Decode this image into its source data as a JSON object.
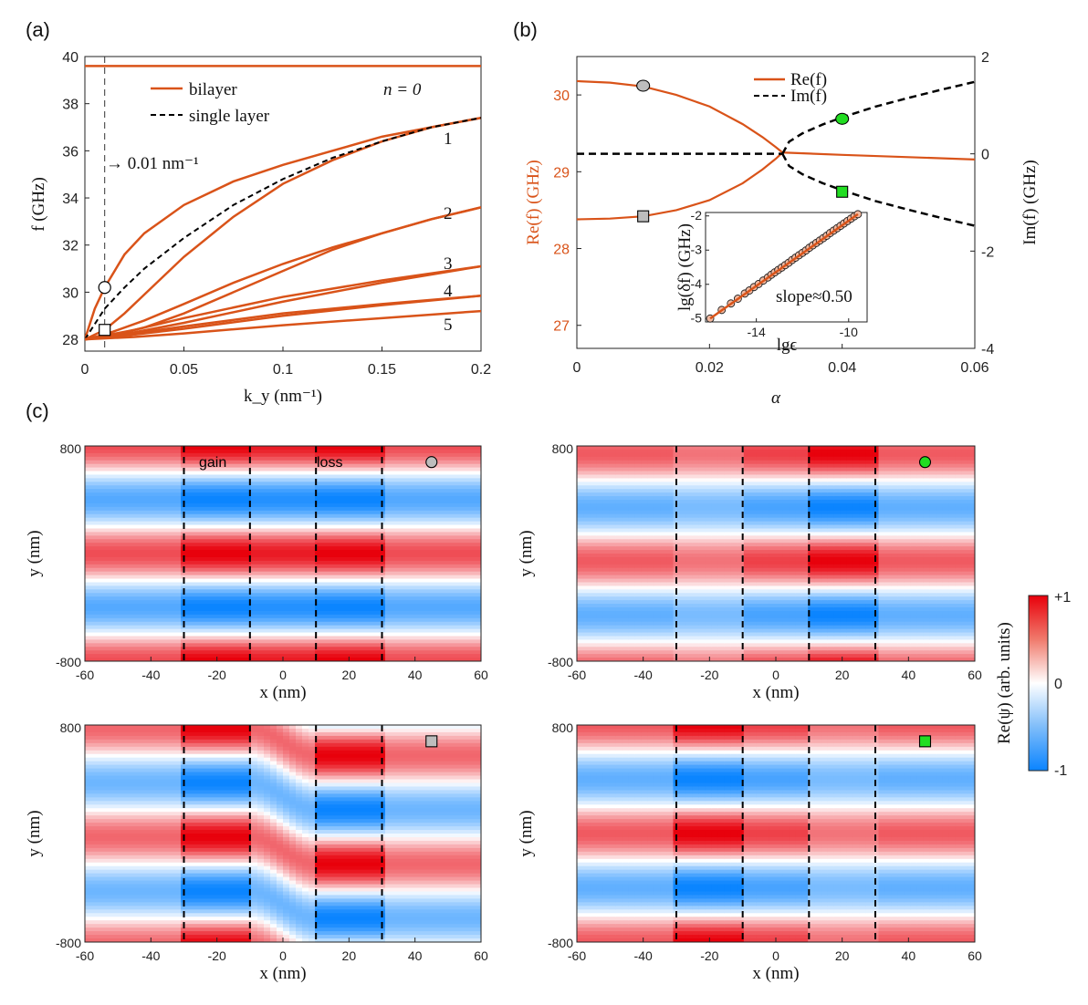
{
  "colors": {
    "bilayer": "#d95319",
    "single": "#000000",
    "gray": "#bdbdbd",
    "green": "#22dd22",
    "red": "#e8000b",
    "blue": "#0a84ff"
  },
  "panel_labels": {
    "a": "(a)",
    "b": "(b)",
    "c": "(c)"
  },
  "chart_data": [
    {
      "id": "a",
      "type": "line",
      "xlabel": "k_y (nm⁻¹)",
      "ylabel": "f (GHz)",
      "xlim": [
        0,
        0.2
      ],
      "ylim": [
        27.5,
        40
      ],
      "xticks": [
        0,
        0.05,
        0.1,
        0.15,
        0.2
      ],
      "xtick_labels": [
        "0",
        "0.05",
        "0.1",
        "0.15",
        "0.2"
      ],
      "yticks": [
        28,
        30,
        32,
        34,
        36,
        38,
        40
      ],
      "ytick_labels": [
        "28",
        "30",
        "32",
        "34",
        "36",
        "38",
        "40"
      ],
      "legend": [
        "bilayer",
        "single layer"
      ],
      "n_label": "n = 0",
      "branch_labels": [
        "1",
        "2",
        "3",
        "4",
        "5"
      ],
      "marker_line_label": "→ 0.01 nm⁻¹",
      "marker_line_x": 0.01,
      "markers": [
        {
          "shape": "circle",
          "x": 0.01,
          "y": 30.2
        },
        {
          "shape": "square",
          "x": 0.01,
          "y": 28.4
        }
      ],
      "series": [
        {
          "name": "bilayer n=0",
          "style": "bilayer",
          "x": [
            0,
            0.2
          ],
          "y": [
            39.6,
            39.6
          ]
        },
        {
          "name": "bilayer n=1 upper",
          "style": "bilayer",
          "x": [
            0,
            0.005,
            0.01,
            0.02,
            0.03,
            0.05,
            0.075,
            0.1,
            0.125,
            0.15,
            0.175,
            0.2
          ],
          "y": [
            28.0,
            29.3,
            30.2,
            31.6,
            32.5,
            33.7,
            34.7,
            35.4,
            36.0,
            36.6,
            37.0,
            37.4
          ]
        },
        {
          "name": "bilayer n=1 lower",
          "style": "bilayer",
          "x": [
            0,
            0.01,
            0.02,
            0.03,
            0.05,
            0.075,
            0.1,
            0.125,
            0.15,
            0.175,
            0.2
          ],
          "y": [
            28.0,
            28.4,
            29.1,
            29.9,
            31.5,
            33.2,
            34.6,
            35.6,
            36.4,
            37.0,
            37.4
          ]
        },
        {
          "name": "single layer n=1",
          "style": "single",
          "x": [
            0,
            0.01,
            0.02,
            0.03,
            0.05,
            0.075,
            0.1,
            0.125,
            0.15,
            0.175,
            0.2
          ],
          "y": [
            28.0,
            29.3,
            30.2,
            31.0,
            32.3,
            33.7,
            34.8,
            35.7,
            36.4,
            37.0,
            37.4
          ]
        },
        {
          "name": "bilayer n=2 upper",
          "style": "bilayer",
          "x": [
            0,
            0.01,
            0.03,
            0.05,
            0.075,
            0.1,
            0.125,
            0.15,
            0.175,
            0.2
          ],
          "y": [
            28.0,
            28.2,
            28.8,
            29.5,
            30.4,
            31.2,
            31.9,
            32.5,
            33.1,
            33.6
          ]
        },
        {
          "name": "bilayer n=2 lower",
          "style": "bilayer",
          "x": [
            0,
            0.01,
            0.03,
            0.05,
            0.075,
            0.1,
            0.125,
            0.15,
            0.175,
            0.2
          ],
          "y": [
            28.0,
            28.1,
            28.5,
            29.1,
            30.0,
            30.9,
            31.8,
            32.5,
            33.1,
            33.6
          ]
        },
        {
          "name": "bilayer n=3 upper",
          "style": "bilayer",
          "x": [
            0,
            0.025,
            0.05,
            0.1,
            0.15,
            0.2
          ],
          "y": [
            28.0,
            28.4,
            28.9,
            29.8,
            30.5,
            31.1
          ]
        },
        {
          "name": "bilayer n=3 lower",
          "style": "bilayer",
          "x": [
            0,
            0.025,
            0.05,
            0.1,
            0.15,
            0.2
          ],
          "y": [
            28.0,
            28.3,
            28.7,
            29.6,
            30.4,
            31.1
          ]
        },
        {
          "name": "bilayer n=4 upper",
          "style": "bilayer",
          "x": [
            0,
            0.025,
            0.05,
            0.1,
            0.15,
            0.2
          ],
          "y": [
            28.0,
            28.25,
            28.55,
            29.1,
            29.5,
            29.85
          ]
        },
        {
          "name": "bilayer n=4 lower",
          "style": "bilayer",
          "x": [
            0,
            0.025,
            0.05,
            0.1,
            0.15,
            0.2
          ],
          "y": [
            28.0,
            28.2,
            28.45,
            29.0,
            29.45,
            29.85
          ]
        },
        {
          "name": "bilayer n=5",
          "style": "bilayer",
          "x": [
            0,
            0.025,
            0.05,
            0.1,
            0.15,
            0.2
          ],
          "y": [
            28.0,
            28.1,
            28.25,
            28.6,
            28.9,
            29.2
          ]
        }
      ]
    },
    {
      "id": "b",
      "type": "line",
      "xlabel": "α",
      "ylabel_left": "Re(f) (GHz)",
      "ylabel_right": "Im(f) (GHz)",
      "xlim": [
        0,
        0.06
      ],
      "ylim_left": [
        26.7,
        30.5
      ],
      "ylim_right": [
        -4,
        2
      ],
      "xticks": [
        0,
        0.02,
        0.04,
        0.06
      ],
      "xtick_labels": [
        "0",
        "0.02",
        "0.04",
        "0.06"
      ],
      "yticks_left": [
        27,
        28,
        29,
        30
      ],
      "ytick_labels_left": [
        "27",
        "28",
        "29",
        "30"
      ],
      "yticks_right": [
        -4,
        -2,
        0,
        2
      ],
      "ytick_labels_right": [
        "-4",
        "-2",
        "0",
        "2"
      ],
      "legend": [
        "Re(f)",
        "Im(f)"
      ],
      "exceptional_point_alpha": 0.031,
      "markers": [
        {
          "shape": "circle",
          "color": "gray",
          "x": 0.01,
          "y": 30.12,
          "axis": "left"
        },
        {
          "shape": "square",
          "color": "gray",
          "x": 0.01,
          "y": 28.42,
          "axis": "left"
        },
        {
          "shape": "circle",
          "color": "green",
          "x": 0.04,
          "y": 0.72,
          "axis": "right"
        },
        {
          "shape": "square",
          "color": "green",
          "x": 0.04,
          "y": -0.78,
          "axis": "right"
        }
      ],
      "series": [
        {
          "name": "Re(f) upper",
          "axis": "left",
          "style": "solid",
          "x": [
            0,
            0.005,
            0.01,
            0.015,
            0.02,
            0.025,
            0.028,
            0.03,
            0.031
          ],
          "y": [
            30.18,
            30.16,
            30.11,
            30.0,
            29.85,
            29.62,
            29.45,
            29.32,
            29.25
          ]
        },
        {
          "name": "Re(f) lower",
          "axis": "left",
          "style": "solid",
          "x": [
            0,
            0.005,
            0.01,
            0.015,
            0.02,
            0.025,
            0.028,
            0.03,
            0.031
          ],
          "y": [
            28.38,
            28.39,
            28.42,
            28.5,
            28.63,
            28.85,
            29.03,
            29.17,
            29.25
          ]
        },
        {
          "name": "Re(f) after EP",
          "axis": "left",
          "style": "solid",
          "x": [
            0.031,
            0.04,
            0.05,
            0.06
          ],
          "y": [
            29.25,
            29.22,
            29.19,
            29.16
          ]
        },
        {
          "name": "Im(f) before EP",
          "axis": "right",
          "style": "dashed",
          "x": [
            0,
            0.031
          ],
          "y": [
            0,
            0
          ]
        },
        {
          "name": "Im(f) upper",
          "axis": "right",
          "style": "dashed",
          "x": [
            0.031,
            0.032,
            0.034,
            0.037,
            0.04,
            0.045,
            0.05,
            0.055,
            0.06
          ],
          "y": [
            0,
            0.25,
            0.42,
            0.6,
            0.75,
            0.97,
            1.15,
            1.32,
            1.48
          ]
        },
        {
          "name": "Im(f) lower",
          "axis": "right",
          "style": "dashed",
          "x": [
            0.031,
            0.032,
            0.034,
            0.037,
            0.04,
            0.045,
            0.05,
            0.055,
            0.06
          ],
          "y": [
            0,
            -0.25,
            -0.42,
            -0.6,
            -0.75,
            -0.97,
            -1.15,
            -1.32,
            -1.48
          ]
        }
      ],
      "inset": {
        "type": "scatter",
        "xlabel": "lgϵ",
        "ylabel": "lg(δf) (GHz)",
        "xlim": [
          -16.2,
          -9.2
        ],
        "ylim": [
          -5.1,
          -1.9
        ],
        "xticks": [
          -14,
          -10
        ],
        "xtick_labels": [
          "-14",
          "-10"
        ],
        "yticks": [
          -5,
          -4,
          -3,
          -2
        ],
        "ytick_labels": [
          "-5",
          "-4",
          "-3",
          "-2"
        ],
        "annotation": "slope≈0.50",
        "fit": {
          "x": [
            -16.0,
            -9.6
          ],
          "y": [
            -5.0,
            -1.95
          ]
        },
        "points_x": [
          -16.0,
          -15.5,
          -15.1,
          -14.8,
          -14.5,
          -14.3,
          -14.1,
          -13.9,
          -13.7,
          -13.5,
          -13.35,
          -13.2,
          -13.05,
          -12.9,
          -12.75,
          -12.6,
          -12.45,
          -12.3,
          -12.15,
          -12.0,
          -11.85,
          -11.7,
          -11.55,
          -11.4,
          -11.25,
          -11.1,
          -10.95,
          -10.8,
          -10.65,
          -10.5,
          -10.35,
          -10.2,
          -10.05,
          -9.9,
          -9.75,
          -9.6
        ],
        "points_y": [
          -5.0,
          -4.75,
          -4.56,
          -4.42,
          -4.27,
          -4.18,
          -4.08,
          -3.99,
          -3.89,
          -3.8,
          -3.72,
          -3.65,
          -3.58,
          -3.51,
          -3.44,
          -3.37,
          -3.29,
          -3.22,
          -3.15,
          -3.08,
          -3.01,
          -2.93,
          -2.86,
          -2.79,
          -2.72,
          -2.65,
          -2.58,
          -2.5,
          -2.43,
          -2.36,
          -2.29,
          -2.22,
          -2.15,
          -2.08,
          -2.01,
          -1.95
        ]
      }
    },
    {
      "id": "c",
      "type": "heatmap",
      "xlabel": "x (nm)",
      "ylabel": "y (nm)",
      "xlim": [
        -60,
        60
      ],
      "ylim": [
        -800,
        800
      ],
      "xticks": [
        -60,
        -40,
        -20,
        0,
        20,
        40,
        60
      ],
      "xtick_labels": [
        "-60",
        "-40",
        "-20",
        "0",
        "20",
        "40",
        "60"
      ],
      "ytick_labels": [
        "800",
        "-800"
      ],
      "dashed_x": [
        -30,
        -10,
        10,
        30
      ],
      "region_labels": {
        "gain": "gain",
        "loss": "loss"
      },
      "colorbar": {
        "label": "Re(ψ) (arb. units)",
        "tick_labels": [
          "+1",
          "0",
          "-1"
        ],
        "range": [
          -1,
          1
        ]
      },
      "panels": [
        {
          "pos": "top-left",
          "marker": "circle",
          "marker_color": "gray",
          "marker_x": 45,
          "marker_y": 680,
          "wave": {
            "k": 3.14,
            "phase": 0.0,
            "tilt": 0,
            "cG": 1.0,
            "cL": 1.0,
            "cGap": 0.9,
            "cOut": 0.7,
            "gcG": 0.2,
            "gcL": 0.2
          }
        },
        {
          "pos": "top-right",
          "marker": "circle",
          "marker_color": "green",
          "marker_x": 45,
          "marker_y": 680,
          "wave": {
            "k": 3.14,
            "phase": 0.45,
            "tilt": 0,
            "cG": 0.55,
            "cL": 1.0,
            "cGap": 0.75,
            "cOut": 0.65,
            "gcG": 0.0,
            "gcL": 0.4
          }
        },
        {
          "pos": "bottom-left",
          "marker": "square",
          "marker_color": "gray",
          "marker_x": 45,
          "marker_y": 680,
          "wave": {
            "k": 3.14,
            "phase": 0.2,
            "tilt": 1.57,
            "cG": 1.0,
            "cL": 1.0,
            "cGap": 0.6,
            "cOut": 0.6,
            "gcG": 0.4,
            "gcL": 0.4
          }
        },
        {
          "pos": "bottom-right",
          "marker": "square",
          "marker_color": "green",
          "marker_x": 45,
          "marker_y": 680,
          "wave": {
            "k": 3.14,
            "phase": 0.0,
            "tilt": 0,
            "cG": 1.0,
            "cL": 0.55,
            "cGap": 0.75,
            "cOut": 0.65,
            "gcG": 0.4,
            "gcL": 0.0
          }
        }
      ]
    }
  ]
}
